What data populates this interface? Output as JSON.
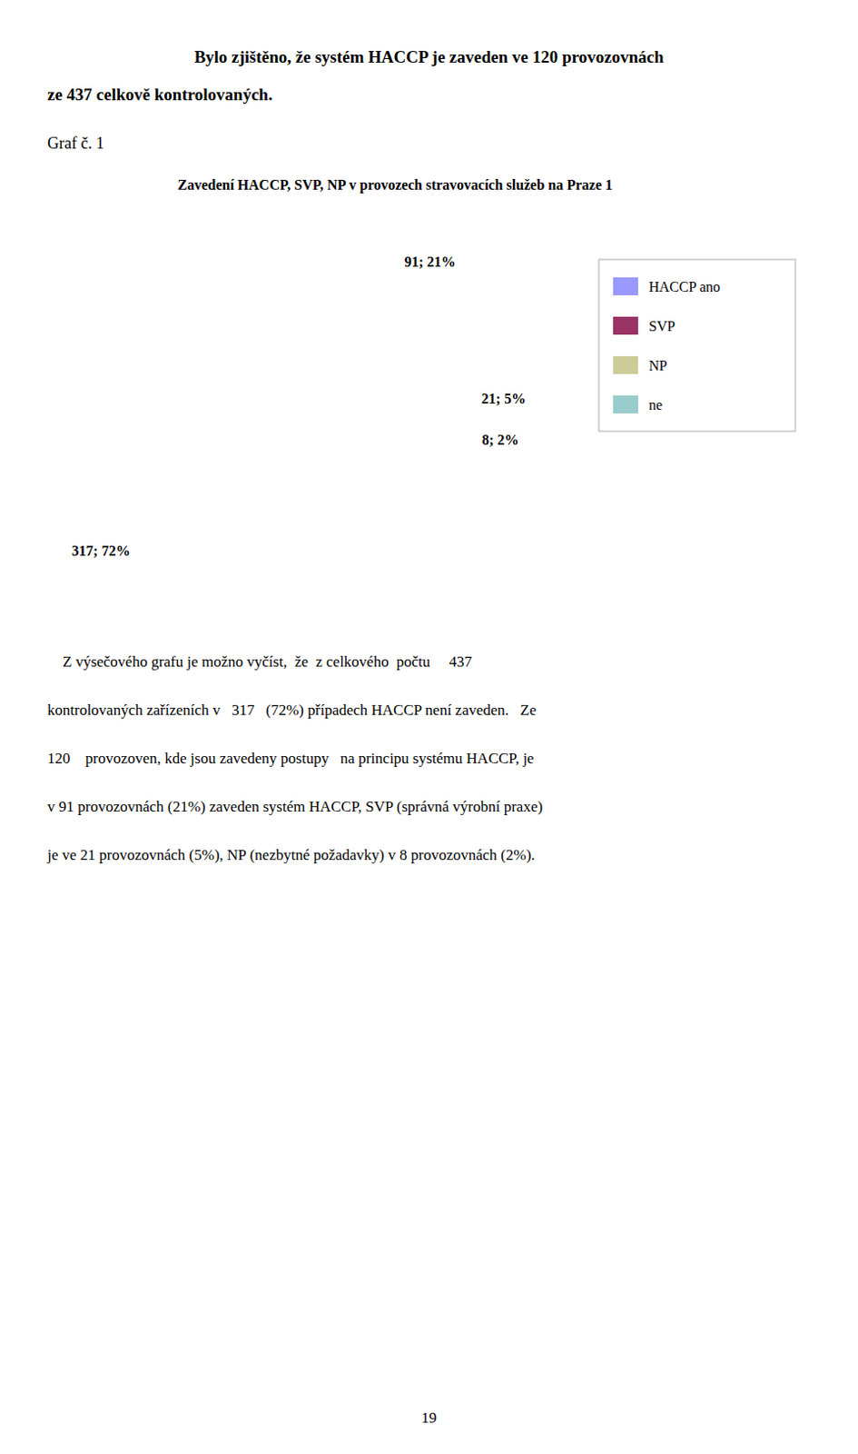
{
  "header_lines": [
    "Bylo zjištěno, že systém HACCP je zaveden ve 120 provozovnách",
    "ze 437 celkově kontrolovaných."
  ],
  "caption": "Graf č. 1",
  "chart_data": {
    "type": "pie",
    "title": "Zavedení HACCP, SVP, NP v provozech stravovacích služeb na Praze 1",
    "categories": [
      "HACCP ano",
      "SVP",
      "NP",
      "ne"
    ],
    "values": [
      91,
      21,
      8,
      317
    ],
    "value_labels": [
      "91; 21%",
      "21; 5%",
      "8; 2%",
      "317; 72%"
    ],
    "colors": [
      "#9999ff",
      "#993366",
      "#cccc99",
      "#99cccc"
    ],
    "data_labels": true,
    "legend": "right"
  },
  "paragraph_lines": [
    "    Z výsečového grafu je možno vyčíst,  že  z celkového  počtu     437",
    "kontrolovaných zařízeních v   317   (72%) případech HACCP není zaveden.   Ze",
    "120    provozoven, kde jsou zavedeny postupy   na principu systému HACCP, je",
    "v 91 provozovnách (21%) zaveden systém HACCP, SVP (správná výrobní praxe)",
    "je ve 21 provozovnách (5%), NP (nezbytné požadavky) v 8 provozovnách (2%)."
  ],
  "page_number": "19"
}
